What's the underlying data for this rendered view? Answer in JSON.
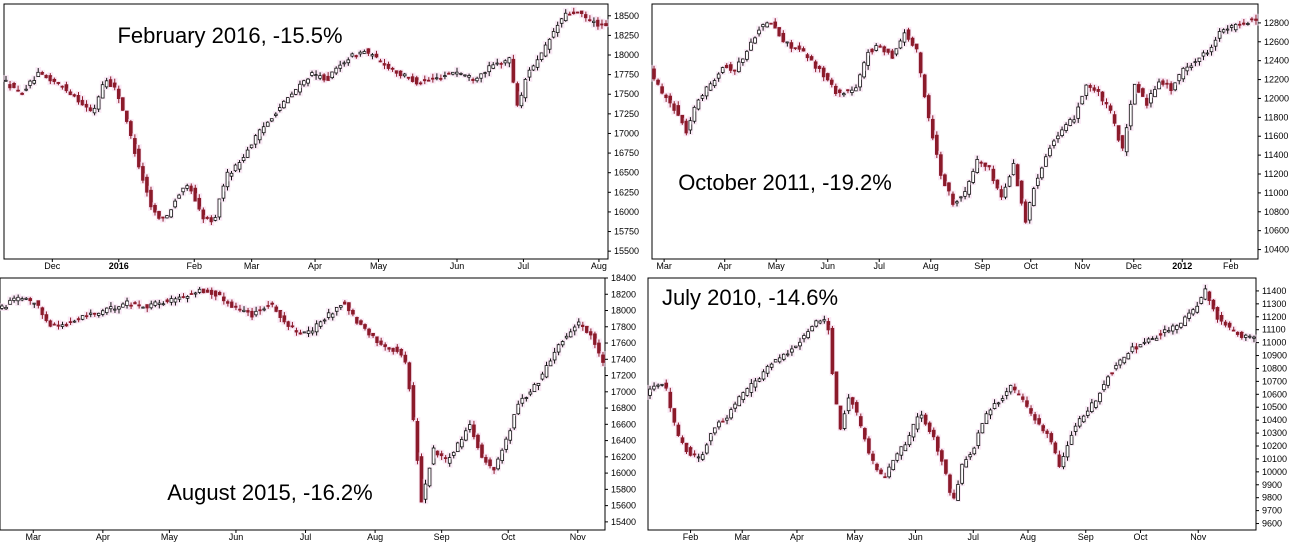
{
  "chart_data": [
    {
      "type": "candlestick",
      "annotation": "February 2016, -15.5%",
      "ylim": [
        15400,
        18650
      ],
      "y_ticks": [
        18500,
        18250,
        18000,
        17750,
        17500,
        17250,
        17000,
        16750,
        16500,
        16250,
        16000,
        15750,
        15500
      ],
      "x_ticks": [
        "Dec",
        "2016",
        "Feb",
        "Mar",
        "Apr",
        "May",
        "Jun",
        "Jul",
        "Aug"
      ],
      "x_tick_bold": [
        false,
        true,
        false,
        false,
        false,
        false,
        false,
        false,
        false
      ],
      "x_tick_pos": [
        0.08,
        0.19,
        0.315,
        0.41,
        0.515,
        0.62,
        0.75,
        0.86,
        0.985
      ],
      "path": [
        [
          0,
          17700
        ],
        [
          0.03,
          17500
        ],
        [
          0.06,
          17750
        ],
        [
          0.09,
          17650
        ],
        [
          0.12,
          17480
        ],
        [
          0.15,
          17250
        ],
        [
          0.17,
          17700
        ],
        [
          0.19,
          17550
        ],
        [
          0.21,
          17050
        ],
        [
          0.23,
          16500
        ],
        [
          0.25,
          16000
        ],
        [
          0.27,
          15900
        ],
        [
          0.29,
          16200
        ],
        [
          0.31,
          16350
        ],
        [
          0.33,
          15950
        ],
        [
          0.35,
          15850
        ],
        [
          0.37,
          16450
        ],
        [
          0.39,
          16600
        ],
        [
          0.42,
          16950
        ],
        [
          0.45,
          17250
        ],
        [
          0.48,
          17500
        ],
        [
          0.51,
          17750
        ],
        [
          0.54,
          17700
        ],
        [
          0.57,
          17950
        ],
        [
          0.6,
          18050
        ],
        [
          0.63,
          17900
        ],
        [
          0.66,
          17750
        ],
        [
          0.69,
          17650
        ],
        [
          0.72,
          17700
        ],
        [
          0.75,
          17800
        ],
        [
          0.78,
          17700
        ],
        [
          0.81,
          17850
        ],
        [
          0.84,
          17950
        ],
        [
          0.855,
          17300
        ],
        [
          0.87,
          17800
        ],
        [
          0.89,
          17950
        ],
        [
          0.91,
          18250
        ],
        [
          0.93,
          18500
        ],
        [
          0.95,
          18550
        ],
        [
          0.97,
          18450
        ],
        [
          1.0,
          18350
        ]
      ]
    },
    {
      "type": "candlestick",
      "annotation": "October 2011, -19.2%",
      "ylim": [
        10300,
        13000
      ],
      "y_ticks": [
        12800,
        12600,
        12400,
        12200,
        12000,
        11800,
        11600,
        11400,
        11200,
        11000,
        10800,
        10600,
        10400
      ],
      "x_ticks": [
        "Mar",
        "Apr",
        "May",
        "Jun",
        "Jul",
        "Aug",
        "Sep",
        "Oct",
        "Nov",
        "Dec",
        "2012",
        "Feb"
      ],
      "x_tick_bold": [
        false,
        false,
        false,
        false,
        false,
        false,
        false,
        false,
        false,
        false,
        true,
        false
      ],
      "x_tick_pos": [
        0.02,
        0.12,
        0.205,
        0.29,
        0.375,
        0.46,
        0.545,
        0.625,
        0.71,
        0.795,
        0.875,
        0.955
      ],
      "path": [
        [
          0,
          12300
        ],
        [
          0.02,
          12050
        ],
        [
          0.04,
          11900
        ],
        [
          0.06,
          11650
        ],
        [
          0.08,
          12000
        ],
        [
          0.1,
          12150
        ],
        [
          0.12,
          12350
        ],
        [
          0.14,
          12300
        ],
        [
          0.16,
          12500
        ],
        [
          0.18,
          12750
        ],
        [
          0.2,
          12800
        ],
        [
          0.22,
          12600
        ],
        [
          0.25,
          12500
        ],
        [
          0.28,
          12300
        ],
        [
          0.31,
          12050
        ],
        [
          0.34,
          12100
        ],
        [
          0.36,
          12500
        ],
        [
          0.38,
          12550
        ],
        [
          0.4,
          12450
        ],
        [
          0.42,
          12700
        ],
        [
          0.44,
          12500
        ],
        [
          0.46,
          11800
        ],
        [
          0.48,
          11200
        ],
        [
          0.5,
          10900
        ],
        [
          0.52,
          11000
        ],
        [
          0.54,
          11350
        ],
        [
          0.56,
          11250
        ],
        [
          0.58,
          10950
        ],
        [
          0.6,
          11300
        ],
        [
          0.62,
          10700
        ],
        [
          0.635,
          11100
        ],
        [
          0.66,
          11500
        ],
        [
          0.68,
          11650
        ],
        [
          0.7,
          11800
        ],
        [
          0.72,
          12150
        ],
        [
          0.74,
          12050
        ],
        [
          0.76,
          11850
        ],
        [
          0.78,
          11450
        ],
        [
          0.8,
          12150
        ],
        [
          0.82,
          11950
        ],
        [
          0.84,
          12200
        ],
        [
          0.86,
          12100
        ],
        [
          0.88,
          12300
        ],
        [
          0.9,
          12400
        ],
        [
          0.92,
          12500
        ],
        [
          0.94,
          12700
        ],
        [
          0.96,
          12750
        ],
        [
          0.98,
          12800
        ],
        [
          1.0,
          12850
        ]
      ]
    },
    {
      "type": "candlestick",
      "annotation": "August 2015, -16.2%",
      "ylim": [
        15300,
        18400
      ],
      "y_ticks": [
        18400,
        18200,
        18000,
        17800,
        17600,
        17400,
        17200,
        17000,
        16800,
        16600,
        16400,
        16200,
        16000,
        15800,
        15600,
        15400
      ],
      "x_ticks": [
        "Mar",
        "Apr",
        "May",
        "Jun",
        "Jul",
        "Aug",
        "Sep",
        "Oct",
        "Nov"
      ],
      "x_tick_bold": [
        false,
        false,
        false,
        false,
        false,
        false,
        false,
        false,
        false
      ],
      "x_tick_pos": [
        0.055,
        0.17,
        0.28,
        0.39,
        0.505,
        0.62,
        0.73,
        0.84,
        0.955
      ],
      "path": [
        [
          0,
          18000
        ],
        [
          0.03,
          18150
        ],
        [
          0.06,
          18100
        ],
        [
          0.09,
          17800
        ],
        [
          0.12,
          17850
        ],
        [
          0.15,
          17950
        ],
        [
          0.18,
          18000
        ],
        [
          0.21,
          18100
        ],
        [
          0.24,
          18050
        ],
        [
          0.27,
          18100
        ],
        [
          0.3,
          18150
        ],
        [
          0.33,
          18250
        ],
        [
          0.36,
          18200
        ],
        [
          0.39,
          18050
        ],
        [
          0.42,
          17950
        ],
        [
          0.45,
          18100
        ],
        [
          0.48,
          17800
        ],
        [
          0.51,
          17700
        ],
        [
          0.54,
          17900
        ],
        [
          0.57,
          18100
        ],
        [
          0.6,
          17800
        ],
        [
          0.63,
          17600
        ],
        [
          0.66,
          17500
        ],
        [
          0.675,
          17350
        ],
        [
          0.69,
          16450
        ],
        [
          0.7,
          15650
        ],
        [
          0.72,
          16300
        ],
        [
          0.74,
          16150
        ],
        [
          0.76,
          16350
        ],
        [
          0.78,
          16600
        ],
        [
          0.8,
          16200
        ],
        [
          0.82,
          16050
        ],
        [
          0.84,
          16400
        ],
        [
          0.86,
          16850
        ],
        [
          0.88,
          17000
        ],
        [
          0.9,
          17200
        ],
        [
          0.92,
          17500
        ],
        [
          0.94,
          17700
        ],
        [
          0.96,
          17850
        ],
        [
          0.98,
          17700
        ],
        [
          1.0,
          17350
        ]
      ]
    },
    {
      "type": "candlestick",
      "annotation": "July 2010, -14.6%",
      "ylim": [
        9550,
        11500
      ],
      "y_ticks": [
        11400,
        11300,
        11200,
        11100,
        11000,
        10900,
        10800,
        10700,
        10600,
        10500,
        10400,
        10300,
        10200,
        10100,
        10000,
        9900,
        9800,
        9700,
        9600
      ],
      "x_ticks": [
        "Feb",
        "Mar",
        "Apr",
        "May",
        "Jun",
        "Jul",
        "Aug",
        "Sep",
        "Oct",
        "Nov"
      ],
      "x_tick_bold": [
        false,
        false,
        false,
        false,
        false,
        false,
        false,
        false,
        false,
        false
      ],
      "x_tick_pos": [
        0.07,
        0.155,
        0.245,
        0.34,
        0.44,
        0.535,
        0.625,
        0.72,
        0.81,
        0.905
      ],
      "path": [
        [
          0,
          10600
        ],
        [
          0.03,
          10700
        ],
        [
          0.05,
          10300
        ],
        [
          0.07,
          10150
        ],
        [
          0.09,
          10100
        ],
        [
          0.11,
          10350
        ],
        [
          0.13,
          10400
        ],
        [
          0.15,
          10550
        ],
        [
          0.18,
          10700
        ],
        [
          0.21,
          10850
        ],
        [
          0.24,
          10950
        ],
        [
          0.27,
          11100
        ],
        [
          0.29,
          11200
        ],
        [
          0.3,
          11100
        ],
        [
          0.31,
          10600
        ],
        [
          0.32,
          10350
        ],
        [
          0.335,
          10600
        ],
        [
          0.35,
          10400
        ],
        [
          0.37,
          10100
        ],
        [
          0.39,
          9950
        ],
        [
          0.41,
          10100
        ],
        [
          0.43,
          10250
        ],
        [
          0.45,
          10450
        ],
        [
          0.47,
          10300
        ],
        [
          0.49,
          10050
        ],
        [
          0.505,
          9750
        ],
        [
          0.52,
          10050
        ],
        [
          0.54,
          10200
        ],
        [
          0.56,
          10450
        ],
        [
          0.58,
          10550
        ],
        [
          0.6,
          10650
        ],
        [
          0.62,
          10550
        ],
        [
          0.64,
          10400
        ],
        [
          0.66,
          10300
        ],
        [
          0.68,
          10050
        ],
        [
          0.7,
          10300
        ],
        [
          0.72,
          10450
        ],
        [
          0.74,
          10550
        ],
        [
          0.76,
          10750
        ],
        [
          0.78,
          10850
        ],
        [
          0.8,
          10950
        ],
        [
          0.82,
          11000
        ],
        [
          0.84,
          11050
        ],
        [
          0.86,
          11100
        ],
        [
          0.88,
          11150
        ],
        [
          0.9,
          11250
        ],
        [
          0.92,
          11400
        ],
        [
          0.94,
          11200
        ],
        [
          0.96,
          11100
        ],
        [
          0.98,
          11050
        ],
        [
          1.0,
          11050
        ]
      ]
    }
  ]
}
